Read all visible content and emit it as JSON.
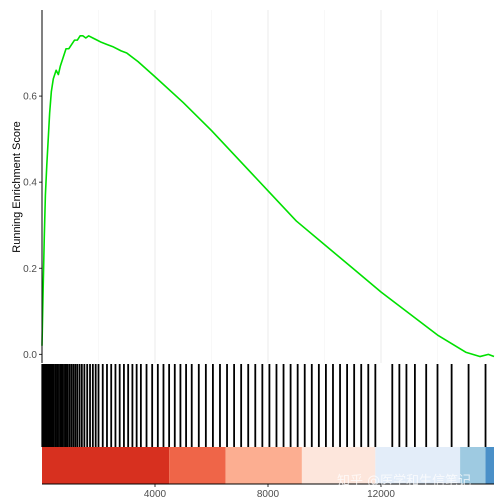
{
  "chart_data": {
    "type": "line",
    "title": "",
    "xlabel": "",
    "ylabel": "Running Enrichment Score",
    "xlim": [
      0,
      16000
    ],
    "ylim": [
      -0.02,
      0.8
    ],
    "x_ticks": [
      4000,
      8000,
      12000
    ],
    "x_tick_labels": [
      "4000",
      "8000",
      "12000"
    ],
    "y_ticks": [
      0.0,
      0.2,
      0.4,
      0.6
    ],
    "y_tick_labels": [
      "0.0",
      "0.2",
      "0.4",
      "0.6"
    ],
    "grid": true,
    "legend": "none",
    "series": [
      {
        "color": "#00e000",
        "points": [
          [
            0,
            0.02
          ],
          [
            40,
            0.15
          ],
          [
            80,
            0.27
          ],
          [
            120,
            0.37
          ],
          [
            170,
            0.44
          ],
          [
            220,
            0.5
          ],
          [
            270,
            0.56
          ],
          [
            330,
            0.61
          ],
          [
            400,
            0.64
          ],
          [
            500,
            0.66
          ],
          [
            580,
            0.65
          ],
          [
            650,
            0.67
          ],
          [
            750,
            0.69
          ],
          [
            850,
            0.71
          ],
          [
            950,
            0.71
          ],
          [
            1050,
            0.72
          ],
          [
            1150,
            0.73
          ],
          [
            1250,
            0.73
          ],
          [
            1350,
            0.74
          ],
          [
            1450,
            0.74
          ],
          [
            1550,
            0.735
          ],
          [
            1650,
            0.74
          ],
          [
            1800,
            0.735
          ],
          [
            1950,
            0.73
          ],
          [
            2100,
            0.725
          ],
          [
            2300,
            0.72
          ],
          [
            2500,
            0.715
          ],
          [
            2800,
            0.705
          ],
          [
            3000,
            0.7
          ],
          [
            3400,
            0.68
          ],
          [
            4000,
            0.645
          ],
          [
            5000,
            0.585
          ],
          [
            6000,
            0.52
          ],
          [
            7000,
            0.45
          ],
          [
            8000,
            0.38
          ],
          [
            9000,
            0.31
          ],
          [
            10000,
            0.255
          ],
          [
            11000,
            0.2
          ],
          [
            12000,
            0.145
          ],
          [
            13000,
            0.095
          ],
          [
            14000,
            0.045
          ],
          [
            15000,
            0.005
          ],
          [
            15500,
            -0.005
          ],
          [
            15800,
            0.0
          ],
          [
            16000,
            -0.005
          ]
        ]
      }
    ],
    "hits": [
      10,
      60,
      110,
      160,
      210,
      260,
      310,
      360,
      420,
      480,
      540,
      600,
      660,
      720,
      780,
      840,
      900,
      970,
      1040,
      1110,
      1180,
      1250,
      1330,
      1410,
      1500,
      1600,
      1700,
      1800,
      1900,
      2000,
      2150,
      2300,
      2450,
      2600,
      2750,
      2900,
      3050,
      3200,
      3350,
      3500,
      3700,
      3900,
      4100,
      4300,
      4500,
      4700,
      4900,
      5100,
      5300,
      5550,
      5800,
      6050,
      6300,
      6550,
      6800,
      7050,
      7300,
      7550,
      7800,
      8050,
      8300,
      8550,
      8800,
      9050,
      9300,
      9550,
      9800,
      10050,
      10300,
      10550,
      10800,
      11050,
      11300,
      11550,
      11800,
      12400,
      12650,
      12900,
      13200,
      13600,
      14000,
      14500,
      15100,
      15700
    ],
    "ranked_list_colors": [
      {
        "from": 0,
        "to": 4500,
        "color": "#d7301f"
      },
      {
        "from": 4500,
        "to": 6500,
        "color": "#ef6548"
      },
      {
        "from": 6500,
        "to": 9200,
        "color": "#fcae91"
      },
      {
        "from": 9200,
        "to": 11800,
        "color": "#fde6dc"
      },
      {
        "from": 11800,
        "to": 14800,
        "color": "#e3edf9"
      },
      {
        "from": 14800,
        "to": 15700,
        "color": "#9ecae1"
      },
      {
        "from": 15700,
        "to": 16000,
        "color": "#4a90c8"
      }
    ]
  },
  "watermark": "知乎 @医学和生信笔记"
}
